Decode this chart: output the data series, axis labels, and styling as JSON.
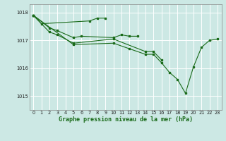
{
  "title": "Graphe pression niveau de la mer (hPa)",
  "background_color": "#cce8e4",
  "line_color": "#1a6b1a",
  "grid_color": "#ffffff",
  "xlim": [
    -0.5,
    23.5
  ],
  "ylim": [
    1014.5,
    1018.3
  ],
  "yticks": [
    1015,
    1016,
    1017,
    1018
  ],
  "xticks": [
    0,
    1,
    2,
    3,
    4,
    5,
    6,
    7,
    8,
    9,
    10,
    11,
    12,
    13,
    14,
    15,
    16,
    17,
    18,
    19,
    20,
    21,
    22,
    23
  ],
  "series": [
    [
      1017.9,
      1017.6,
      null,
      null,
      null,
      null,
      null,
      1017.7,
      1017.8,
      1017.8,
      null,
      null,
      null,
      null,
      null,
      null,
      null,
      null,
      null,
      null,
      null,
      null,
      null,
      null
    ],
    [
      1017.9,
      null,
      1017.45,
      1017.35,
      null,
      1017.1,
      1017.15,
      null,
      null,
      null,
      1017.1,
      1017.2,
      1017.15,
      1017.15,
      null,
      null,
      null,
      null,
      null,
      null,
      null,
      null,
      null,
      null
    ],
    [
      1017.9,
      null,
      1017.3,
      1017.2,
      null,
      1016.9,
      null,
      null,
      null,
      null,
      1017.05,
      null,
      null,
      null,
      1016.6,
      1016.6,
      1016.3,
      null,
      null,
      null,
      null,
      null,
      null,
      null
    ],
    [
      1017.9,
      null,
      null,
      null,
      null,
      1016.85,
      null,
      null,
      null,
      null,
      1016.9,
      null,
      1016.7,
      null,
      1016.5,
      1016.5,
      1016.2,
      1015.85,
      1015.6,
      1015.1,
      1016.05,
      1016.75,
      1017.0,
      1017.05
    ]
  ]
}
